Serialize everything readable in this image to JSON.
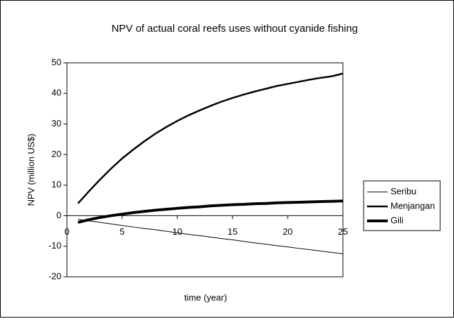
{
  "chart_data": {
    "type": "line",
    "title": "NPV of actual coral reefs uses without cyanide fishing",
    "xlabel": "time (year)",
    "ylabel": "NPV (million US$)",
    "x": [
      1,
      2,
      3,
      4,
      5,
      6,
      7,
      8,
      9,
      10,
      11,
      12,
      13,
      14,
      15,
      16,
      17,
      18,
      19,
      20,
      21,
      22,
      23,
      24,
      25
    ],
    "series": [
      {
        "name": "Seribu",
        "color": "#000000",
        "width": 1,
        "values": [
          -1.2,
          -1.7,
          -2.2,
          -2.7,
          -3.2,
          -3.7,
          -4.2,
          -4.6,
          -5.1,
          -5.6,
          -6.1,
          -6.5,
          -7,
          -7.5,
          -7.9,
          -8.4,
          -8.9,
          -9.3,
          -9.8,
          -10.2,
          -10.7,
          -11.1,
          -11.6,
          -12,
          -12.5
        ]
      },
      {
        "name": "Menjangan",
        "color": "#000000",
        "width": 2.5,
        "values": [
          4,
          8,
          11.8,
          15.4,
          18.7,
          21.6,
          24.3,
          26.8,
          29,
          31,
          32.8,
          34.4,
          35.9,
          37.3,
          38.5,
          39.6,
          40.6,
          41.5,
          42.4,
          43.1,
          43.8,
          44.5,
          45.1,
          45.6,
          46.5
        ]
      },
      {
        "name": "Gili",
        "color": "#000000",
        "width": 4,
        "values": [
          -2.2,
          -1.3,
          -0.6,
          0,
          0.5,
          1,
          1.4,
          1.8,
          2.1,
          2.4,
          2.7,
          2.9,
          3.2,
          3.4,
          3.6,
          3.7,
          3.9,
          4,
          4.2,
          4.3,
          4.4,
          4.5,
          4.6,
          4.7,
          4.8
        ]
      }
    ],
    "xlim": [
      0,
      25
    ],
    "xticks": [
      0,
      5,
      10,
      15,
      20,
      25
    ],
    "ylim": [
      -20,
      50
    ],
    "yticks": [
      -20,
      -10,
      0,
      10,
      20,
      30,
      40,
      50
    ],
    "legend": "right"
  }
}
